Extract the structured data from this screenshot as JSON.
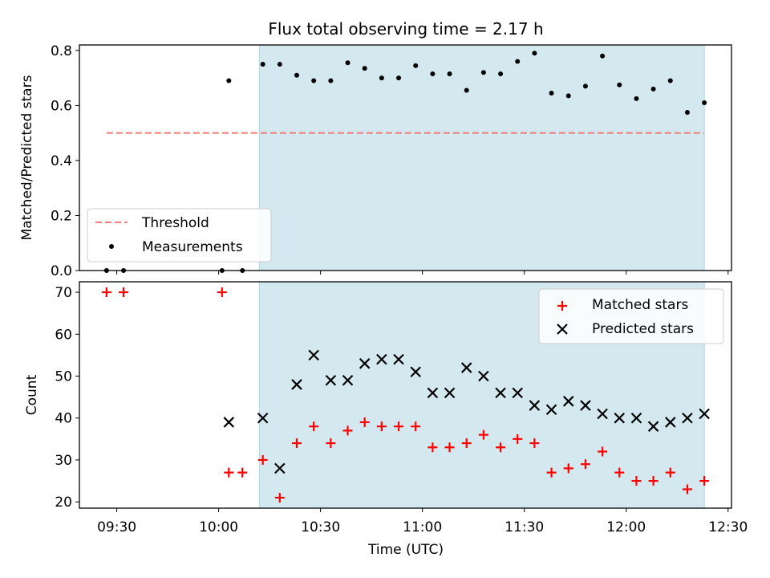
{
  "title": "Flux total observing time = 2.17 h",
  "chart_data": [
    {
      "type": "scatter",
      "ylabel": "Matched/Predicted stars",
      "xlabel": "",
      "ylim": [
        0.0,
        0.82
      ],
      "yticks": [
        "0.0",
        "0.2",
        "0.4",
        "0.6",
        "0.8"
      ],
      "xlim": [
        "09:19",
        "12:31"
      ],
      "grid": false,
      "legend_position": "lower-left",
      "shaded_interval": [
        "10:12",
        "12:23"
      ],
      "shaded_color": "#d3e9ef",
      "threshold": {
        "name": "Threshold",
        "value": 0.5,
        "x_range": [
          "09:27",
          "12:23"
        ],
        "color": "#f27a78"
      },
      "series": [
        {
          "name": "Measurements",
          "color": "#000000",
          "x": [
            "09:27",
            "09:32",
            "10:01",
            "10:03",
            "10:07",
            "10:13",
            "10:18",
            "10:23",
            "10:28",
            "10:33",
            "10:38",
            "10:43",
            "10:48",
            "10:53",
            "10:58",
            "11:03",
            "11:08",
            "11:13",
            "11:18",
            "11:23",
            "11:28",
            "11:33",
            "11:38",
            "11:43",
            "11:48",
            "11:53",
            "11:58",
            "12:03",
            "12:08",
            "12:13",
            "12:18",
            "12:23"
          ],
          "y": [
            0.0,
            0.0,
            0.0,
            0.69,
            0.0,
            0.75,
            0.75,
            0.71,
            0.69,
            0.69,
            0.755,
            0.735,
            0.7,
            0.7,
            0.745,
            0.715,
            0.715,
            0.655,
            0.72,
            0.715,
            0.76,
            0.79,
            0.645,
            0.635,
            0.67,
            0.78,
            0.675,
            0.625,
            0.66,
            0.69,
            0.575,
            0.61
          ]
        }
      ]
    },
    {
      "type": "scatter",
      "ylabel": "Count",
      "xlabel": "Time (UTC)",
      "ylim": [
        18.5,
        72.5
      ],
      "yticks": [
        "20",
        "30",
        "40",
        "50",
        "60",
        "70"
      ],
      "xlim": [
        "09:19",
        "12:31"
      ],
      "xticks": [
        "09:30",
        "10:00",
        "10:30",
        "11:00",
        "11:30",
        "12:00",
        "12:30"
      ],
      "grid": false,
      "legend_position": "upper-right",
      "shaded_interval": [
        "10:12",
        "12:23"
      ],
      "series": [
        {
          "name": "Matched stars",
          "marker": "+",
          "color": "#ff0000",
          "x": [
            "09:27",
            "09:32",
            "10:01",
            "10:03",
            "10:07",
            "10:13",
            "10:18",
            "10:23",
            "10:28",
            "10:33",
            "10:38",
            "10:43",
            "10:48",
            "10:53",
            "10:58",
            "11:03",
            "11:08",
            "11:13",
            "11:18",
            "11:23",
            "11:28",
            "11:33",
            "11:38",
            "11:43",
            "11:48",
            "11:53",
            "11:58",
            "12:03",
            "12:08",
            "12:13",
            "12:18",
            "12:23"
          ],
          "y": [
            70,
            70,
            70,
            27,
            27,
            30,
            21,
            34,
            38,
            34,
            37,
            39,
            38,
            38,
            38,
            33,
            33,
            34,
            36,
            33,
            35,
            34,
            27,
            28,
            29,
            32,
            27,
            25,
            25,
            27,
            23,
            25
          ]
        },
        {
          "name": "Predicted stars",
          "marker": "x",
          "color": "#000000",
          "x": [
            "10:03",
            "10:13",
            "10:18",
            "10:23",
            "10:28",
            "10:33",
            "10:38",
            "10:43",
            "10:48",
            "10:53",
            "10:58",
            "11:03",
            "11:08",
            "11:13",
            "11:18",
            "11:23",
            "11:28",
            "11:33",
            "11:38",
            "11:43",
            "11:48",
            "11:53",
            "11:58",
            "12:03",
            "12:08",
            "12:13",
            "12:18",
            "12:23"
          ],
          "y": [
            39,
            40,
            28,
            48,
            55,
            49,
            49,
            53,
            54,
            54,
            51,
            46,
            46,
            52,
            50,
            46,
            46,
            43,
            42,
            44,
            43,
            41,
            40,
            40,
            38,
            39,
            40,
            41
          ]
        }
      ]
    }
  ]
}
